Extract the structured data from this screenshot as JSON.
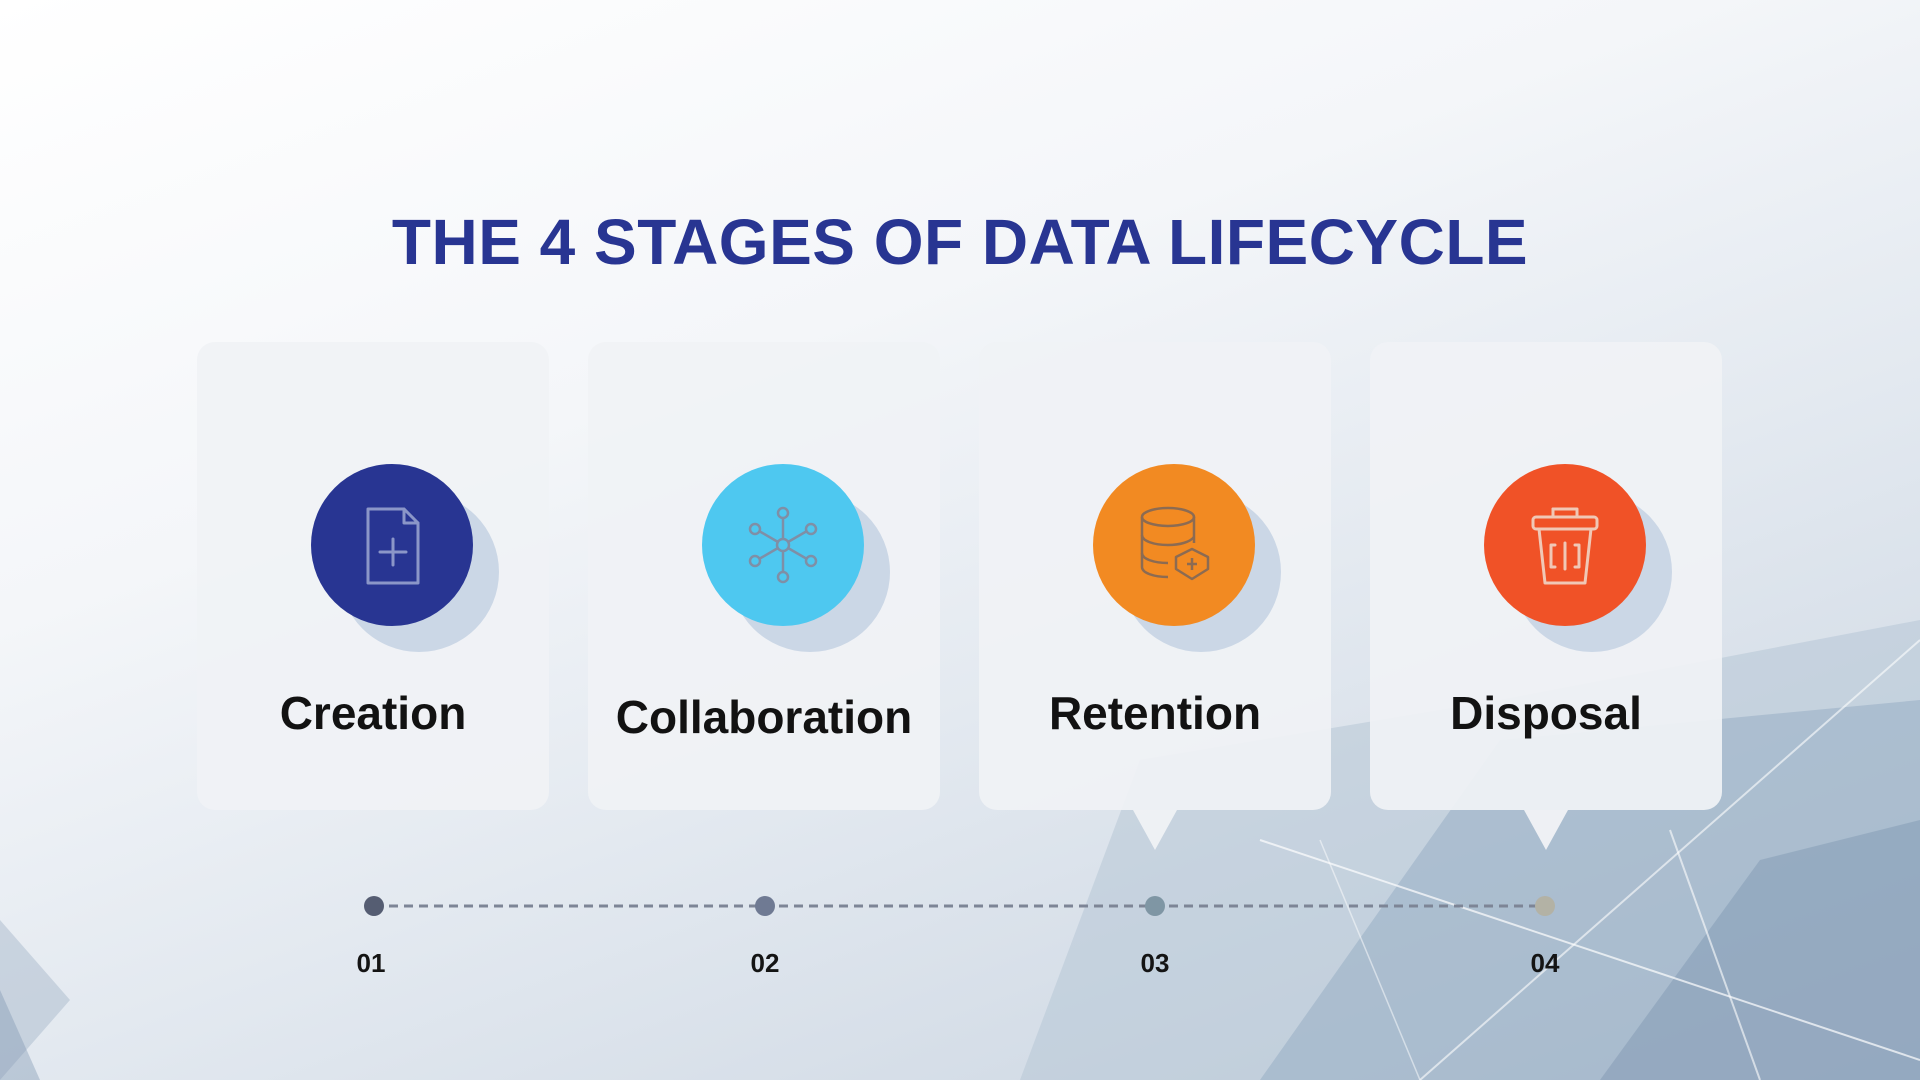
{
  "title": "THE 4 STAGES OF DATA LIFECYCLE",
  "stages": [
    {
      "number": "01",
      "label": "Creation",
      "icon": "add-file-icon",
      "color": "#283592"
    },
    {
      "number": "02",
      "label": "Collaboration",
      "icon": "network-hub-icon",
      "color": "#4ec8f0"
    },
    {
      "number": "03",
      "label": "Retention",
      "icon": "database-shield-icon",
      "color": "#f28a22"
    },
    {
      "number": "04",
      "label": "Disposal",
      "icon": "trash-bin-icon",
      "color": "#f05227"
    }
  ]
}
